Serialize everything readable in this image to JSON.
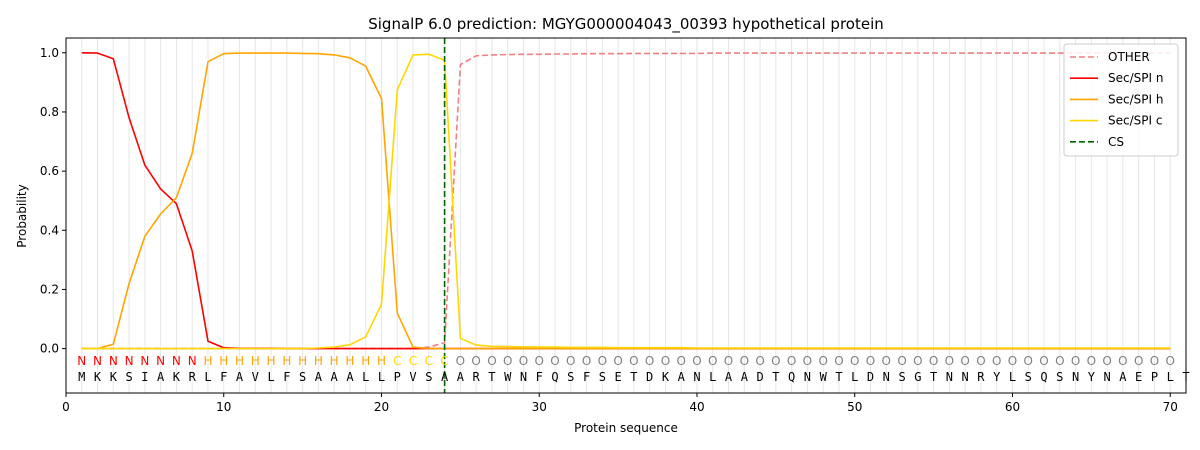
{
  "chart_data": {
    "type": "line",
    "title": "SignalP 6.0 prediction: MGYG000004043_00393 hypothetical protein",
    "xlabel": "Protein sequence",
    "ylabel": "Probability",
    "xlim": [
      0,
      71
    ],
    "ylim": [
      -0.15,
      1.05
    ],
    "x_ticks": [
      0,
      10,
      20,
      30,
      40,
      50,
      60,
      70
    ],
    "y_ticks": [
      0.0,
      0.2,
      0.4,
      0.6,
      0.8,
      1.0
    ],
    "x_tick_labels": [
      "0",
      "10",
      "20",
      "30",
      "40",
      "50",
      "60",
      "70"
    ],
    "y_tick_labels": [
      "0.0",
      "0.2",
      "0.4",
      "0.6",
      "0.8",
      "1.0"
    ],
    "grid": "vertical lines at each residue",
    "legend_position": "top-right",
    "sequence": [
      "M",
      "K",
      "K",
      "S",
      "I",
      "A",
      "K",
      "R",
      "L",
      "F",
      "A",
      "V",
      "L",
      "F",
      "S",
      "A",
      "A",
      "A",
      "L",
      "L",
      "P",
      "V",
      "S",
      "A",
      "A",
      "R",
      "T",
      "W",
      "N",
      "F",
      "Q",
      "S",
      "F",
      "S",
      "E",
      "T",
      "D",
      "K",
      "A",
      "N",
      "L",
      "A",
      "A",
      "D",
      "T",
      "Q",
      "N",
      "W",
      "T",
      "L",
      "D",
      "N",
      "S",
      "G",
      "T",
      "N",
      "N",
      "R",
      "Y",
      "L",
      "S",
      "Q",
      "S",
      "N",
      "Y",
      "N",
      "A",
      "E",
      "P",
      "L",
      "T"
    ],
    "sequence_display": "MKKSIAKRLFAVLFSAAALLPVSARTWNFQSFSETDKANLAADTQNWTLDNSGTNNRYLSQSNYNAEPLT",
    "state_labels": [
      "N",
      "N",
      "N",
      "N",
      "N",
      "N",
      "N",
      "N",
      "H",
      "H",
      "H",
      "H",
      "H",
      "H",
      "H",
      "H",
      "H",
      "H",
      "H",
      "H",
      "C",
      "C",
      "C",
      "C",
      "O",
      "O",
      "O",
      "O",
      "O",
      "O",
      "O",
      "O",
      "O",
      "O",
      "O",
      "O",
      "O",
      "O",
      "O",
      "O",
      "O",
      "O",
      "O",
      "O",
      "O",
      "O",
      "O",
      "O",
      "O",
      "O",
      "O",
      "O",
      "O",
      "O",
      "O",
      "O",
      "O",
      "O",
      "O",
      "O",
      "O",
      "O",
      "O",
      "O",
      "O",
      "O",
      "O",
      "O",
      "O",
      "O"
    ],
    "state_colors": {
      "N": "#ff0000",
      "H": "#ffa500",
      "C": "#ffd700",
      "O": "#808080"
    },
    "cleavage_site": 24,
    "series": [
      {
        "name": "OTHER",
        "color": "#f08080",
        "dash": "dashed",
        "x": [
          1,
          2,
          3,
          4,
          5,
          6,
          7,
          8,
          9,
          10,
          11,
          12,
          13,
          14,
          15,
          16,
          17,
          18,
          19,
          20,
          21,
          22,
          23,
          24,
          25,
          26,
          27,
          28,
          29,
          30,
          31,
          32,
          33,
          34,
          35,
          36,
          37,
          38,
          39,
          40,
          41,
          42,
          43,
          44,
          45,
          46,
          47,
          48,
          49,
          50,
          51,
          52,
          53,
          54,
          55,
          56,
          57,
          58,
          59,
          60,
          61,
          62,
          63,
          64,
          65,
          66,
          67,
          68,
          69,
          70
        ],
        "values": [
          0,
          0,
          0,
          0,
          0,
          0,
          0,
          0,
          0,
          0,
          0,
          0,
          0,
          0,
          0,
          0,
          0,
          0,
          0,
          0,
          0,
          0,
          0.005,
          0.02,
          0.96,
          0.99,
          0.993,
          0.994,
          0.995,
          0.995,
          0.996,
          0.996,
          0.997,
          0.997,
          0.997,
          0.998,
          0.998,
          0.998,
          0.998,
          0.998,
          0.999,
          0.999,
          0.999,
          0.999,
          0.999,
          0.999,
          0.999,
          0.999,
          0.999,
          0.999,
          0.999,
          0.999,
          0.999,
          0.999,
          0.999,
          0.999,
          0.999,
          0.999,
          0.999,
          0.999,
          0.999,
          0.999,
          0.999,
          0.999,
          0.999,
          0.999,
          0.999,
          0.999,
          0.999,
          0.999
        ]
      },
      {
        "name": "Sec/SPI n",
        "color": "#ff0000",
        "dash": "solid",
        "x": [
          1,
          2,
          3,
          4,
          5,
          6,
          7,
          8,
          9,
          10,
          11,
          12,
          13,
          14,
          15,
          16,
          17,
          18,
          19,
          20,
          21,
          22,
          23,
          24,
          25,
          26,
          27,
          28,
          29,
          30,
          31,
          32,
          33,
          34,
          35,
          36,
          37,
          38,
          39,
          40,
          41,
          42,
          43,
          44,
          45,
          46,
          47,
          48,
          49,
          50,
          51,
          52,
          53,
          54,
          55,
          56,
          57,
          58,
          59,
          60,
          61,
          62,
          63,
          64,
          65,
          66,
          67,
          68,
          69,
          70
        ],
        "values": [
          1.0,
          0.999,
          0.98,
          0.78,
          0.62,
          0.54,
          0.49,
          0.33,
          0.025,
          0.003,
          0.001,
          0.001,
          0.001,
          0,
          0,
          0,
          0,
          0,
          0,
          0,
          0,
          0,
          0,
          0,
          0,
          0,
          0,
          0,
          0,
          0,
          0,
          0,
          0,
          0,
          0,
          0,
          0,
          0,
          0,
          0,
          0,
          0,
          0,
          0,
          0,
          0,
          0,
          0,
          0,
          0,
          0,
          0,
          0,
          0,
          0,
          0,
          0,
          0,
          0,
          0,
          0,
          0,
          0,
          0,
          0,
          0,
          0,
          0,
          0,
          0
        ]
      },
      {
        "name": "Sec/SPI h",
        "color": "#ffa500",
        "dash": "solid",
        "x": [
          1,
          2,
          3,
          4,
          5,
          6,
          7,
          8,
          9,
          10,
          11,
          12,
          13,
          14,
          15,
          16,
          17,
          18,
          19,
          20,
          21,
          22,
          23,
          24,
          25,
          26,
          27,
          28,
          29,
          30,
          31,
          32,
          33,
          34,
          35,
          36,
          37,
          38,
          39,
          40,
          41,
          42,
          43,
          44,
          45,
          46,
          47,
          48,
          49,
          50,
          51,
          52,
          53,
          54,
          55,
          56,
          57,
          58,
          59,
          60,
          61,
          62,
          63,
          64,
          65,
          66,
          67,
          68,
          69,
          70
        ],
        "values": [
          0,
          0,
          0.015,
          0.22,
          0.38,
          0.455,
          0.51,
          0.66,
          0.97,
          0.997,
          0.999,
          0.999,
          0.999,
          0.999,
          0.998,
          0.997,
          0.993,
          0.983,
          0.955,
          0.845,
          0.12,
          0.005,
          0,
          0,
          0,
          0,
          0,
          0,
          0,
          0,
          0,
          0,
          0,
          0,
          0,
          0,
          0,
          0,
          0,
          0,
          0,
          0,
          0,
          0,
          0,
          0,
          0,
          0,
          0,
          0,
          0,
          0,
          0,
          0,
          0,
          0,
          0,
          0,
          0,
          0,
          0,
          0,
          0,
          0,
          0,
          0,
          0,
          0,
          0,
          0
        ]
      },
      {
        "name": "Sec/SPI c",
        "color": "#ffd700",
        "dash": "solid",
        "x": [
          1,
          2,
          3,
          4,
          5,
          6,
          7,
          8,
          9,
          10,
          11,
          12,
          13,
          14,
          15,
          16,
          17,
          18,
          19,
          20,
          21,
          22,
          23,
          24,
          25,
          26,
          27,
          28,
          29,
          30,
          31,
          32,
          33,
          34,
          35,
          36,
          37,
          38,
          39,
          40,
          41,
          42,
          43,
          44,
          45,
          46,
          47,
          48,
          49,
          50,
          51,
          52,
          53,
          54,
          55,
          56,
          57,
          58,
          59,
          60,
          61,
          62,
          63,
          64,
          65,
          66,
          67,
          68,
          69,
          70
        ],
        "values": [
          0,
          0,
          0,
          0,
          0,
          0,
          0,
          0,
          0,
          0,
          0,
          0,
          0,
          0,
          0,
          0.002,
          0.005,
          0.013,
          0.04,
          0.15,
          0.875,
          0.993,
          0.995,
          0.975,
          0.035,
          0.012,
          0.008,
          0.007,
          0.006,
          0.005,
          0.005,
          0.004,
          0.004,
          0.004,
          0.003,
          0.003,
          0.003,
          0.003,
          0.003,
          0.002,
          0.002,
          0.002,
          0.002,
          0.002,
          0.002,
          0.002,
          0.002,
          0.002,
          0.002,
          0.002,
          0.002,
          0.002,
          0.002,
          0.002,
          0.002,
          0.002,
          0.002,
          0.002,
          0.002,
          0.002,
          0.002,
          0.002,
          0.002,
          0.002,
          0.002,
          0.002,
          0.002,
          0.002,
          0.002,
          0.002
        ]
      }
    ],
    "cs_marker": {
      "name": "CS",
      "color": "#006400",
      "dash": "dashed"
    }
  }
}
